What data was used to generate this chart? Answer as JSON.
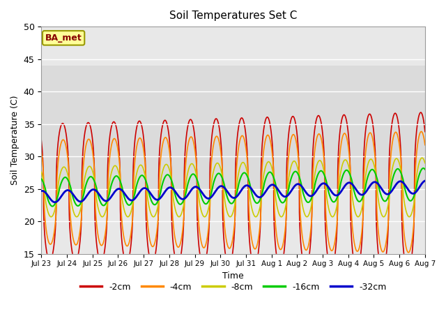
{
  "title": "Soil Temperatures Set C",
  "xlabel": "Time",
  "ylabel": "Soil Temperature (C)",
  "ylim": [
    15,
    50
  ],
  "background_color": "#ffffff",
  "plot_bg_color": "#e8e8e8",
  "annotation_text": "BA_met",
  "annotation_bg": "#ffff99",
  "annotation_border": "#999900",
  "annotation_text_color": "#880000",
  "legend_entries": [
    "-2cm",
    "-4cm",
    "-8cm",
    "-16cm",
    "-32cm"
  ],
  "line_colors": [
    "#cc0000",
    "#ff8800",
    "#cccc00",
    "#00cc00",
    "#0000cc"
  ],
  "line_widths": [
    1.2,
    1.2,
    1.2,
    1.5,
    2.0
  ],
  "xtick_labels": [
    "Jul 23",
    "Jul 24",
    "Jul 25",
    "Jul 26",
    "Jul 27",
    "Jul 28",
    "Jul 29",
    "Jul 30",
    "Jul 31",
    "Aug 1",
    "Aug 2",
    "Aug 3",
    "Aug 4",
    "Aug 5",
    "Aug 6",
    "Aug 7"
  ],
  "ytick_values": [
    15,
    20,
    25,
    30,
    35,
    40,
    45,
    50
  ],
  "num_days": 15
}
